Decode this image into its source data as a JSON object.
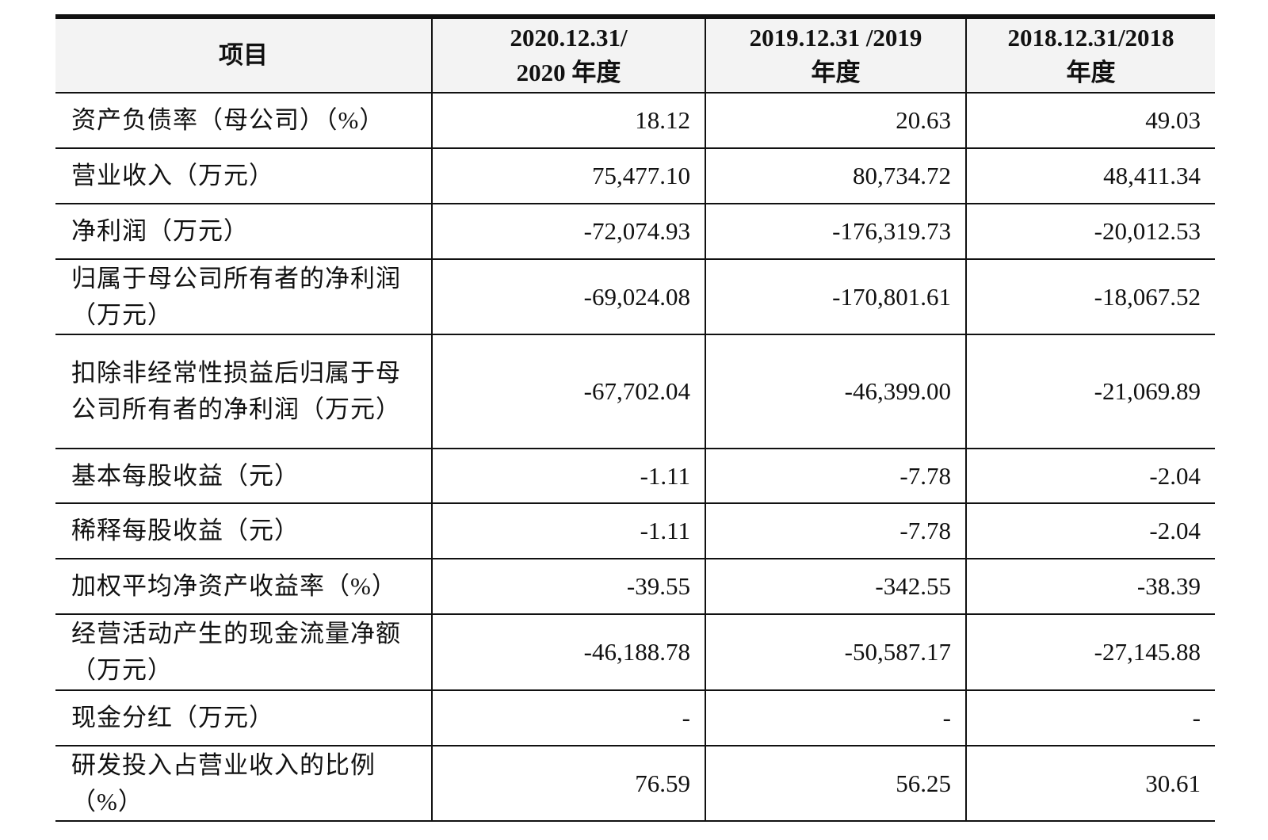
{
  "table": {
    "header": [
      [
        "项目"
      ],
      [
        "2020.12.31/",
        "2020 年度"
      ],
      [
        "2019.12.31 /2019",
        "年度"
      ],
      [
        "2018.12.31/2018",
        "年度"
      ]
    ],
    "rows": [
      [
        "资产负债率（母公司）（%）",
        "18.12",
        "20.63",
        "49.03"
      ],
      [
        "营业收入（万元）",
        "75,477.10",
        "80,734.72",
        "48,411.34"
      ],
      [
        "净利润（万元）",
        "-72,074.93",
        "-176,319.73",
        "-20,012.53"
      ],
      [
        "归属于母公司所有者的净利润（万元）",
        "-69,024.08",
        "-170,801.61",
        "-18,067.52"
      ],
      [
        "扣除非经常性损益后归属于母公司所有者的净利润（万元）",
        "-67,702.04",
        "-46,399.00",
        "-21,069.89"
      ],
      [
        "基本每股收益（元）",
        "-1.11",
        "-7.78",
        "-2.04"
      ],
      [
        "稀释每股收益（元）",
        "-1.11",
        "-7.78",
        "-2.04"
      ],
      [
        "加权平均净资产收益率（%）",
        "-39.55",
        "-342.55",
        "-38.39"
      ],
      [
        "经营活动产生的现金流量净额（万元）",
        "-46,188.78",
        "-50,587.17",
        "-27,145.88"
      ],
      [
        "现金分红（万元）",
        "-",
        "-",
        "-"
      ],
      [
        "研发投入占营业收入的比例（%）",
        "76.59",
        "56.25",
        "30.61"
      ]
    ]
  }
}
